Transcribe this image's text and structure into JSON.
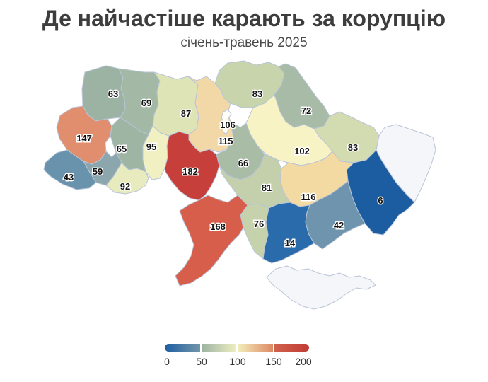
{
  "title": "Де найчастіше карають за корупцію",
  "subtitle": "січень-травень 2025",
  "colors": {
    "border": "#b9c4d8",
    "no_data": "#f5f6f9",
    "label_text": "#121212",
    "label_halo": "#ffffff",
    "title_color": "#3d3d3d"
  },
  "chart_data": {
    "type": "choropleth",
    "title": "Де найчастіше карають за корупцію",
    "subtitle": "січень-травень 2025",
    "geography": "Ukraine oblasts",
    "scale": {
      "min": 0,
      "max": 200,
      "ticks": [
        0,
        50,
        100,
        150,
        200
      ],
      "legend_position": "bottom-center"
    },
    "regions": [
      {
        "id": "volyn",
        "value": 63,
        "color": "#9cb3a4"
      },
      {
        "id": "rivne",
        "value": 69,
        "color": "#a3b8a5"
      },
      {
        "id": "zhytomyr",
        "value": 87,
        "color": "#dfe4b7"
      },
      {
        "id": "kyiv-oblast",
        "value": 115,
        "color": "#f2d8a6"
      },
      {
        "id": "chernihiv",
        "value": 83,
        "color": "#c7d4ac"
      },
      {
        "id": "sumy",
        "value": 72,
        "color": "#a7bba6"
      },
      {
        "id": "poltava",
        "value": 102,
        "color": "#f8f3c4"
      },
      {
        "id": "kharkiv",
        "value": 83,
        "color": "#d3dcb0"
      },
      {
        "id": "luhansk",
        "value": null,
        "color": "#f5f6f9"
      },
      {
        "id": "donetsk",
        "value": 6,
        "color": "#1b5da0"
      },
      {
        "id": "dnipropetrovsk",
        "value": 116,
        "color": "#f3d9a2"
      },
      {
        "id": "zaporizhzhia",
        "value": 42,
        "color": "#6f94ae"
      },
      {
        "id": "kherson",
        "value": 14,
        "color": "#2a6bab"
      },
      {
        "id": "mykolaiv",
        "value": 76,
        "color": "#c5d2ab"
      },
      {
        "id": "odesa",
        "value": 168,
        "color": "#d65e4b"
      },
      {
        "id": "kirovohrad",
        "value": 81,
        "color": "#c3d0ab"
      },
      {
        "id": "cherkasy",
        "value": 66,
        "color": "#a8bca6"
      },
      {
        "id": "vinnytsia",
        "value": 182,
        "color": "#c63f3a"
      },
      {
        "id": "khmelnytskyi",
        "value": 95,
        "color": "#f1f0c3"
      },
      {
        "id": "ternopil",
        "value": 65,
        "color": "#9eb5a3"
      },
      {
        "id": "lviv",
        "value": 147,
        "color": "#e08e6e"
      },
      {
        "id": "ivano-frankivsk",
        "value": 59,
        "color": "#8ba6ac"
      },
      {
        "id": "zakarpattia",
        "value": 43,
        "color": "#6992ad"
      },
      {
        "id": "chernivtsi",
        "value": 92,
        "color": "#e8ebbe"
      },
      {
        "id": "kyiv-city",
        "value": 106,
        "color": "#fdfdf8"
      },
      {
        "id": "crimea",
        "value": null,
        "color": "#f5f6f9"
      }
    ]
  },
  "legend": {
    "ticks": [
      "0",
      "50",
      "100",
      "150",
      "200"
    ],
    "segments": [
      {
        "from": "#1e5fa3",
        "to": "#7295a9"
      },
      {
        "from": "#9cb3a3",
        "to": "#eeeec0"
      },
      {
        "from": "#f3eebc",
        "to": "#dd8a64"
      },
      {
        "from": "#d0614c",
        "to": "#c23b36"
      }
    ]
  }
}
